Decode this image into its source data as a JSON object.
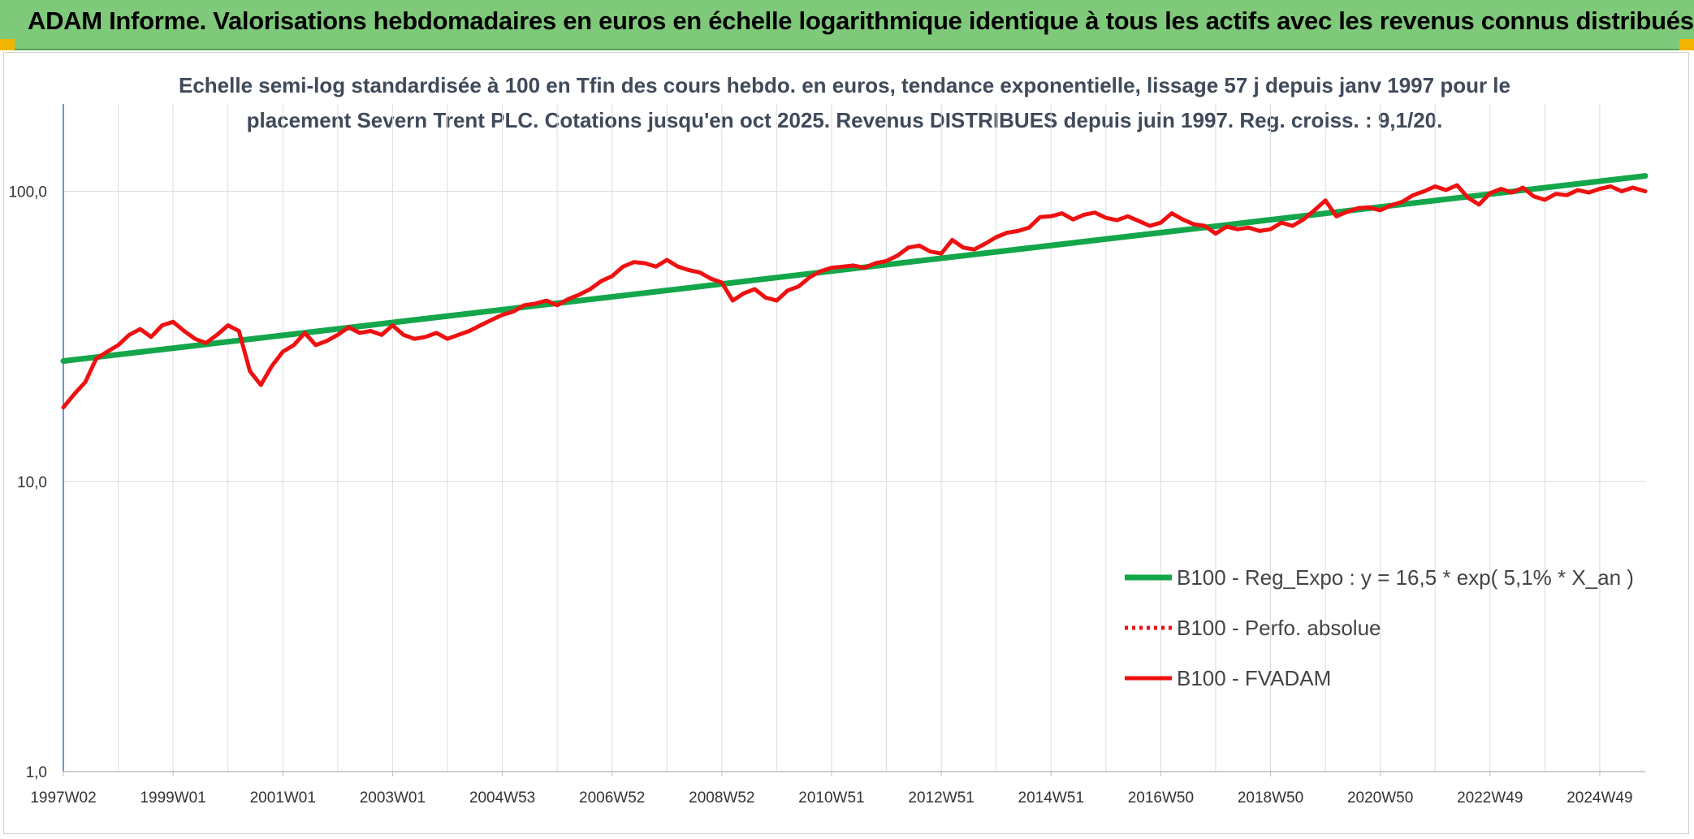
{
  "header": {
    "title": "ADAM Informe. Valorisations hebdomadaires en euros en échelle logarithmique identique à tous les actifs avec les revenus connus distribués",
    "background": "#7fc97a"
  },
  "chart_data": {
    "type": "line",
    "title_line1": "Echelle semi-log standardisée à 100 en Tfin des cours hebdo. en euros, tendance exponentielle, lissage 57 j depuis janv 1997 pour le",
    "title_line2": "placement Severn Trent PLC. Cotations jusqu'en oct 2025. Revenus DISTRIBUES depuis juin 1997. Reg. croiss. : 9,1/20.",
    "y_scale": "log",
    "ylim": [
      1,
      200
    ],
    "y_ticks": [
      1,
      10,
      100
    ],
    "y_tick_labels": [
      "1,0",
      "10,0",
      "100,0"
    ],
    "xlim": [
      1997.0,
      2025.83
    ],
    "x_ticks": [
      1997.0,
      1999.0,
      2001.0,
      2003.0,
      2005.0,
      2007.0,
      2009.0,
      2011.0,
      2013.0,
      2015.0,
      2017.0,
      2019.0,
      2021.0,
      2023.0,
      2025.0
    ],
    "x_tick_labels": [
      "1997W02",
      "1999W01",
      "2001W01",
      "2003W01",
      "2004W53",
      "2006W52",
      "2008W52",
      "2010W51",
      "2012W51",
      "2014W51",
      "2016W50",
      "2018W50",
      "2020W50",
      "2022W49",
      "2024W49"
    ],
    "grid": true,
    "legend_position": "lower-right",
    "series": [
      {
        "name": "B100 - Reg_Expo : y = 16,5 * exp( 5,1% *  X_an )",
        "color": "#13a64a",
        "style": "solid",
        "x": [
          1997.0,
          2025.83
        ],
        "y": [
          26.0,
          113.0
        ]
      },
      {
        "name": "B100 - Perfo. absolue",
        "color": "#ee1111",
        "style": "dotted",
        "x": [],
        "y": []
      },
      {
        "name": "B100 - FVADAM",
        "color": "#ee1111",
        "style": "solid",
        "x": [
          1997.0,
          1997.2,
          1997.4,
          1997.6,
          1997.8,
          1998.0,
          1998.2,
          1998.4,
          1998.6,
          1998.8,
          1999.0,
          1999.2,
          1999.4,
          1999.6,
          1999.8,
          2000.0,
          2000.2,
          2000.4,
          2000.6,
          2000.8,
          2001.0,
          2001.2,
          2001.4,
          2001.6,
          2001.8,
          2002.0,
          2002.2,
          2002.4,
          2002.6,
          2002.8,
          2003.0,
          2003.2,
          2003.4,
          2003.6,
          2003.8,
          2004.0,
          2004.2,
          2004.4,
          2004.6,
          2004.8,
          2005.0,
          2005.2,
          2005.4,
          2005.6,
          2005.8,
          2006.0,
          2006.2,
          2006.4,
          2006.6,
          2006.8,
          2007.0,
          2007.2,
          2007.4,
          2007.6,
          2007.8,
          2008.0,
          2008.2,
          2008.4,
          2008.6,
          2008.8,
          2009.0,
          2009.2,
          2009.4,
          2009.6,
          2009.8,
          2010.0,
          2010.2,
          2010.4,
          2010.6,
          2010.8,
          2011.0,
          2011.2,
          2011.4,
          2011.6,
          2011.8,
          2012.0,
          2012.2,
          2012.4,
          2012.6,
          2012.8,
          2013.0,
          2013.2,
          2013.4,
          2013.6,
          2013.8,
          2014.0,
          2014.2,
          2014.4,
          2014.6,
          2014.8,
          2015.0,
          2015.2,
          2015.4,
          2015.6,
          2015.8,
          2016.0,
          2016.2,
          2016.4,
          2016.6,
          2016.8,
          2017.0,
          2017.2,
          2017.4,
          2017.6,
          2017.8,
          2018.0,
          2018.2,
          2018.4,
          2018.6,
          2018.8,
          2019.0,
          2019.2,
          2019.4,
          2019.6,
          2019.8,
          2020.0,
          2020.2,
          2020.4,
          2020.6,
          2020.8,
          2021.0,
          2021.2,
          2021.4,
          2021.6,
          2021.8,
          2022.0,
          2022.2,
          2022.4,
          2022.6,
          2022.8,
          2023.0,
          2023.2,
          2023.4,
          2023.6,
          2023.8,
          2024.0,
          2024.2,
          2024.4,
          2024.6,
          2024.8,
          2025.0,
          2025.2,
          2025.4,
          2025.6,
          2025.83
        ],
        "y": [
          18.0,
          20.0,
          22.0,
          26.5,
          28.0,
          29.5,
          32.0,
          33.5,
          31.5,
          34.5,
          35.5,
          33.0,
          31.0,
          30.0,
          32.0,
          34.5,
          33.0,
          24.0,
          21.5,
          25.0,
          28.0,
          29.5,
          32.5,
          29.5,
          30.5,
          32.0,
          34.0,
          32.5,
          33.0,
          32.0,
          34.5,
          32.0,
          31.0,
          31.5,
          32.5,
          31.0,
          32.0,
          33.0,
          34.5,
          36.0,
          37.5,
          38.5,
          40.5,
          41.0,
          42.0,
          40.5,
          42.5,
          44.0,
          46.0,
          49.0,
          51.0,
          55.0,
          57.0,
          56.5,
          55.0,
          58.0,
          55.0,
          53.5,
          52.5,
          50.0,
          48.5,
          42.0,
          44.5,
          46.0,
          43.0,
          42.0,
          45.5,
          47.0,
          50.5,
          53.0,
          54.5,
          55.0,
          55.5,
          54.5,
          56.5,
          57.5,
          60.0,
          64.0,
          65.0,
          62.0,
          61.0,
          68.0,
          64.0,
          63.0,
          66.0,
          69.5,
          72.0,
          73.0,
          75.0,
          81.5,
          82.0,
          84.0,
          80.0,
          83.0,
          84.5,
          81.0,
          79.5,
          82.0,
          79.0,
          76.0,
          78.0,
          84.0,
          80.0,
          77.0,
          76.0,
          71.5,
          75.5,
          74.0,
          75.0,
          73.0,
          74.0,
          78.0,
          76.0,
          80.0,
          86.0,
          93.0,
          82.0,
          85.0,
          87.5,
          88.0,
          86.0,
          89.5,
          92.0,
          97.0,
          100.0,
          104.0,
          101.0,
          105.0,
          95.0,
          90.0,
          98.5,
          102.0,
          99.0,
          103.0,
          96.0,
          93.5,
          98.0,
          97.0,
          101.0,
          99.0,
          102.0,
          104.0,
          100.0,
          103.0,
          100.0
        ]
      }
    ]
  }
}
